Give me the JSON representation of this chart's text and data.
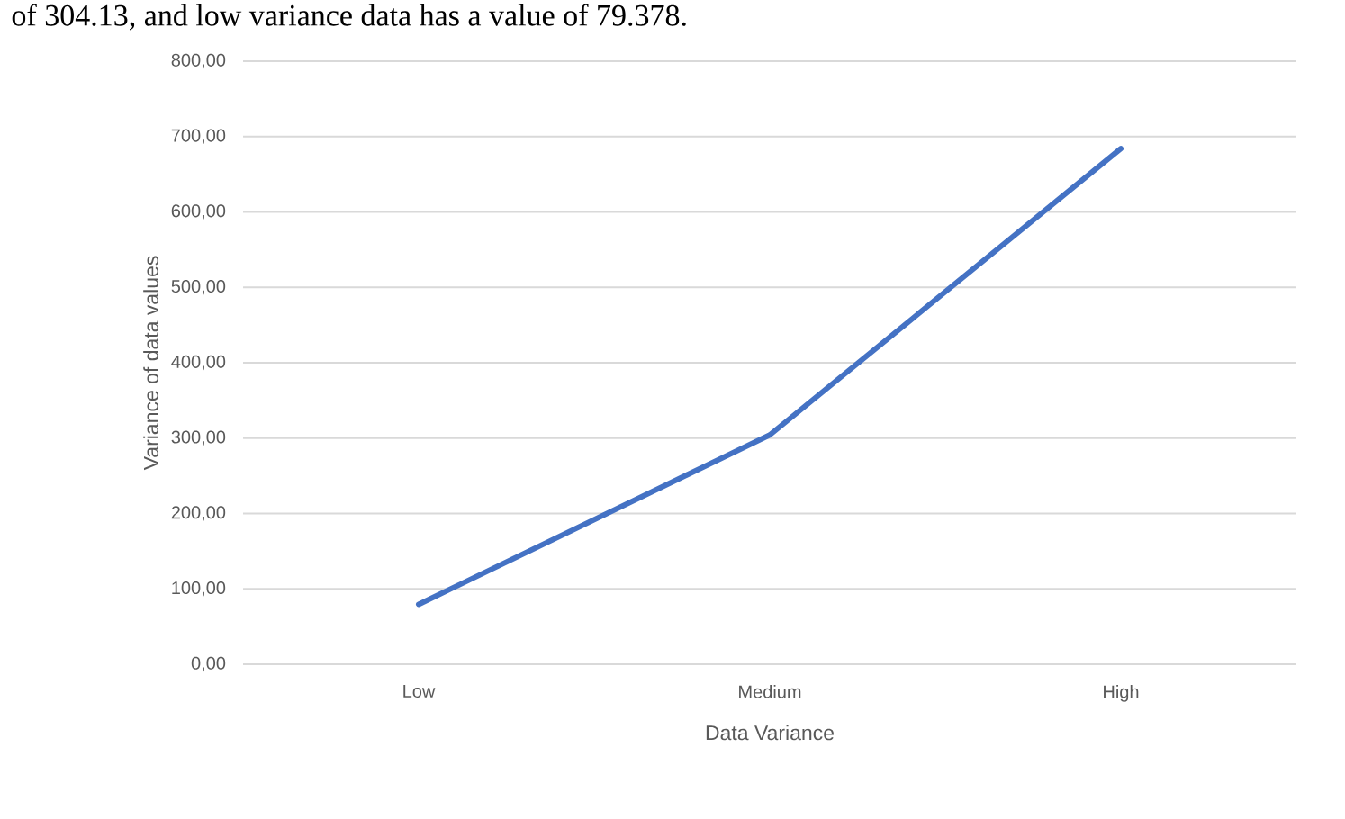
{
  "chart_data": {
    "type": "line",
    "annotations": [
      "of 304.13, and low variance data has a value of 79.378."
    ],
    "xlabel": "Data Variance",
    "ylabel": "Variance of data values",
    "categories": [
      "Low",
      "Medium",
      "High"
    ],
    "series": [
      {
        "color": "#4472c4",
        "values": [
          79.378,
          304.13,
          684
        ]
      }
    ],
    "ylim": [
      0,
      800
    ],
    "yticks": [
      {
        "value": 0,
        "label": "0,00"
      },
      {
        "value": 100,
        "label": "100,00"
      },
      {
        "value": 200,
        "label": "200,00"
      },
      {
        "value": 300,
        "label": "300,00"
      },
      {
        "value": 400,
        "label": "400,00"
      },
      {
        "value": 500,
        "label": "500,00"
      },
      {
        "value": 600,
        "label": "600,00"
      },
      {
        "value": 700,
        "label": "700,00"
      },
      {
        "value": 800,
        "label": "800,00"
      }
    ],
    "grid": "y",
    "legend": false,
    "marker": "none",
    "line_style": "solid"
  }
}
